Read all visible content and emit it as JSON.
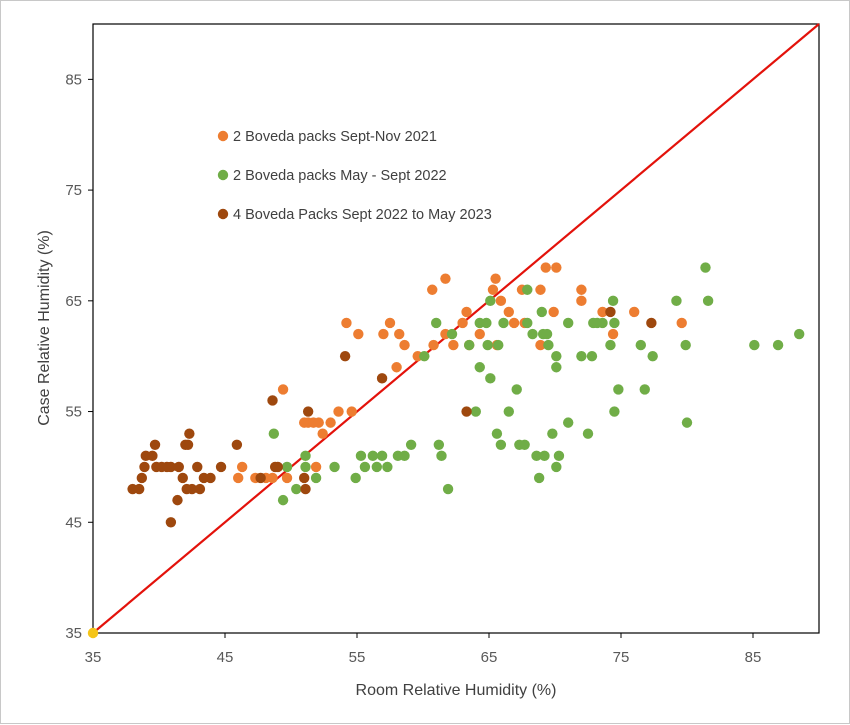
{
  "chart_data": {
    "type": "scatter",
    "title": "",
    "xlabel": "Room Relative Humidity (%)",
    "ylabel": "Case Relative Humidity (%)",
    "xlim": [
      35,
      90
    ],
    "ylim": [
      35,
      90
    ],
    "xticks": [
      35,
      45,
      55,
      65,
      75,
      85
    ],
    "yticks": [
      35,
      45,
      55,
      65,
      75,
      85
    ],
    "grid": false,
    "legend_position": "upper-left-inside",
    "reference_line": {
      "name": "y = x",
      "from": [
        35,
        35
      ],
      "to": [
        90,
        90
      ],
      "color": "#e3120b"
    },
    "origin_point": {
      "x": 35,
      "y": 35,
      "color": "#f5c518"
    },
    "series": [
      {
        "name": "2 Boveda packs Sept-Nov 2021",
        "color": "#ed7d31",
        "points": [
          [
            46,
            49
          ],
          [
            46.3,
            50
          ],
          [
            47.3,
            49
          ],
          [
            48.1,
            49
          ],
          [
            48.6,
            49
          ],
          [
            49.4,
            57
          ],
          [
            49.7,
            49
          ],
          [
            51,
            54
          ],
          [
            51.3,
            54
          ],
          [
            51.7,
            54
          ],
          [
            51.9,
            50
          ],
          [
            52.1,
            54
          ],
          [
            52.4,
            53
          ],
          [
            53,
            54
          ],
          [
            53.6,
            55
          ],
          [
            54.2,
            63
          ],
          [
            54.6,
            55
          ],
          [
            55.1,
            62
          ],
          [
            57,
            62
          ],
          [
            57.5,
            63
          ],
          [
            58,
            59
          ],
          [
            58.2,
            62
          ],
          [
            58.6,
            61
          ],
          [
            59.6,
            60
          ],
          [
            60.7,
            66
          ],
          [
            60.8,
            61
          ],
          [
            61.7,
            62
          ],
          [
            61.7,
            67
          ],
          [
            62.3,
            61
          ],
          [
            63,
            63
          ],
          [
            63.3,
            64
          ],
          [
            63.5,
            61
          ],
          [
            64.3,
            62
          ],
          [
            65.3,
            66
          ],
          [
            65.5,
            67
          ],
          [
            65.6,
            61
          ],
          [
            65.9,
            65
          ],
          [
            66.5,
            64
          ],
          [
            66.9,
            63
          ],
          [
            67.5,
            66
          ],
          [
            67.7,
            63
          ],
          [
            68.9,
            66
          ],
          [
            68.9,
            61
          ],
          [
            69.3,
            68
          ],
          [
            69.9,
            64
          ],
          [
            70.1,
            68
          ],
          [
            72,
            65
          ],
          [
            72,
            66
          ],
          [
            73.6,
            64
          ],
          [
            74.4,
            62
          ],
          [
            76,
            64
          ],
          [
            79.6,
            63
          ]
        ]
      },
      {
        "name": "2 Boveda packs May - Sept 2022",
        "color": "#70ad47",
        "points": [
          [
            48.7,
            53
          ],
          [
            49.4,
            47
          ],
          [
            49.7,
            50
          ],
          [
            50.4,
            48
          ],
          [
            51.1,
            51
          ],
          [
            51.1,
            50
          ],
          [
            51.9,
            49
          ],
          [
            53.3,
            50
          ],
          [
            54.9,
            49
          ],
          [
            55.3,
            51
          ],
          [
            55.6,
            50
          ],
          [
            56.2,
            51
          ],
          [
            56.5,
            50
          ],
          [
            56.9,
            51
          ],
          [
            57.3,
            50
          ],
          [
            58.1,
            51
          ],
          [
            58.6,
            51
          ],
          [
            59.1,
            52
          ],
          [
            60.1,
            60
          ],
          [
            61,
            63
          ],
          [
            61.2,
            52
          ],
          [
            61.4,
            51
          ],
          [
            61.9,
            48
          ],
          [
            62.2,
            62
          ],
          [
            63.5,
            61
          ],
          [
            64,
            55
          ],
          [
            64.3,
            63
          ],
          [
            64.3,
            59
          ],
          [
            64.8,
            63
          ],
          [
            64.9,
            61
          ],
          [
            65.1,
            58
          ],
          [
            65.1,
            65
          ],
          [
            65.6,
            53
          ],
          [
            65.7,
            61
          ],
          [
            65.9,
            52
          ],
          [
            66.1,
            63
          ],
          [
            66.5,
            55
          ],
          [
            67.1,
            57
          ],
          [
            67.3,
            52
          ],
          [
            67.7,
            52
          ],
          [
            67.9,
            66
          ],
          [
            67.9,
            63
          ],
          [
            68.3,
            62
          ],
          [
            68.6,
            51
          ],
          [
            68.8,
            49
          ],
          [
            69,
            64
          ],
          [
            69.1,
            62
          ],
          [
            69.2,
            51
          ],
          [
            69.4,
            62
          ],
          [
            69.5,
            61
          ],
          [
            69.8,
            53
          ],
          [
            70.1,
            60
          ],
          [
            70.1,
            59
          ],
          [
            70.1,
            50
          ],
          [
            70.3,
            51
          ],
          [
            71,
            54
          ],
          [
            71,
            63
          ],
          [
            72,
            60
          ],
          [
            72.5,
            53
          ],
          [
            72.8,
            60
          ],
          [
            72.9,
            63
          ],
          [
            73.2,
            63
          ],
          [
            73.6,
            63
          ],
          [
            74.2,
            61
          ],
          [
            74.4,
            65
          ],
          [
            74.5,
            63
          ],
          [
            74.5,
            55
          ],
          [
            74.8,
            57
          ],
          [
            76.5,
            61
          ],
          [
            76.8,
            57
          ],
          [
            77.4,
            60
          ],
          [
            79.2,
            65
          ],
          [
            79.9,
            61
          ],
          [
            80,
            54
          ],
          [
            81.4,
            68
          ],
          [
            81.6,
            65
          ],
          [
            85.1,
            61
          ],
          [
            86.9,
            61
          ],
          [
            88.5,
            62
          ]
        ]
      },
      {
        "name": "4 Boveda Packs Sept 2022 to May 2023",
        "color": "#9e480e",
        "points": [
          [
            38,
            48
          ],
          [
            38.5,
            48
          ],
          [
            38.7,
            49
          ],
          [
            38.9,
            50
          ],
          [
            39,
            51
          ],
          [
            39.5,
            51
          ],
          [
            39.7,
            52
          ],
          [
            39.8,
            50
          ],
          [
            40.2,
            50
          ],
          [
            40.6,
            50
          ],
          [
            40.9,
            45
          ],
          [
            40.9,
            50
          ],
          [
            41.4,
            47
          ],
          [
            41.5,
            50
          ],
          [
            41.8,
            49
          ],
          [
            42,
            52
          ],
          [
            42.1,
            48
          ],
          [
            42.2,
            52
          ],
          [
            42.3,
            53
          ],
          [
            42.5,
            48
          ],
          [
            42.9,
            50
          ],
          [
            43.1,
            48
          ],
          [
            43.4,
            49
          ],
          [
            43.9,
            49
          ],
          [
            44.7,
            50
          ],
          [
            45.9,
            52
          ],
          [
            47.7,
            49
          ],
          [
            48.6,
            56
          ],
          [
            48.8,
            50
          ],
          [
            49,
            50
          ],
          [
            51,
            49
          ],
          [
            51.1,
            48
          ],
          [
            51.3,
            55
          ],
          [
            54.1,
            60
          ],
          [
            56.9,
            58
          ],
          [
            63.3,
            55
          ],
          [
            74.2,
            64
          ],
          [
            77.3,
            63
          ]
        ]
      }
    ]
  }
}
